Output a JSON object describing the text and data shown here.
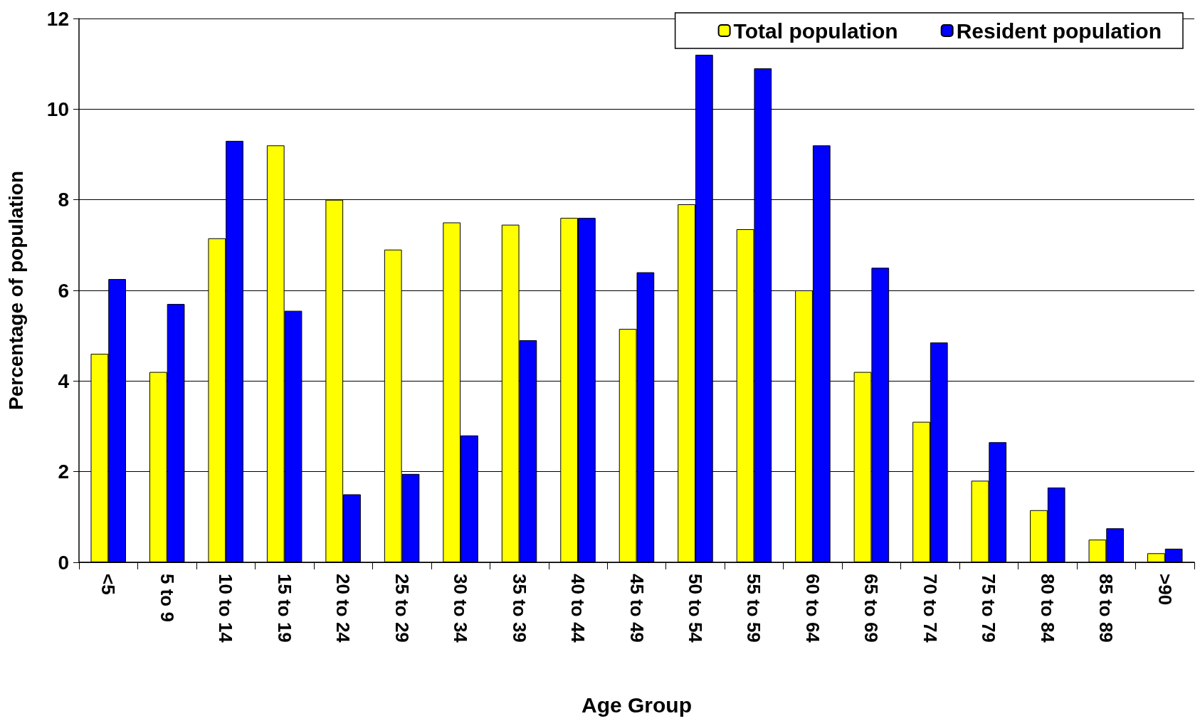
{
  "chart_data": {
    "type": "bar",
    "xlabel": "Age Group",
    "ylabel": "Percentage of population",
    "categories": [
      "<5",
      "5 to 9",
      "10 to 14",
      "15 to 19",
      "20 to 24",
      "25 to 29",
      "30 to 34",
      "35 to 39",
      "40 to 44",
      "45 to 49",
      "50 to 54",
      "55 to 59",
      "60 to 64",
      "65 to 69",
      "70 to 74",
      "75 to 79",
      "80 to 84",
      "85 to 89",
      ">90"
    ],
    "series": [
      {
        "name": "Total population",
        "color": "#ffff00",
        "values": [
          4.6,
          4.2,
          7.15,
          9.2,
          8.0,
          6.9,
          7.5,
          7.45,
          7.6,
          5.15,
          7.9,
          7.35,
          6.0,
          4.2,
          3.1,
          1.8,
          1.15,
          0.5,
          0.2
        ]
      },
      {
        "name": "Resident population",
        "color": "#0000ff",
        "values": [
          6.25,
          5.7,
          9.3,
          5.55,
          1.5,
          1.95,
          2.8,
          4.9,
          7.6,
          6.4,
          11.2,
          10.9,
          9.2,
          6.5,
          4.85,
          2.65,
          1.65,
          0.75,
          0.3
        ]
      }
    ],
    "ylim": [
      0,
      12
    ],
    "yticks": [
      0,
      2,
      4,
      6,
      8,
      10,
      12
    ],
    "grid": "y",
    "legend": "top right"
  }
}
